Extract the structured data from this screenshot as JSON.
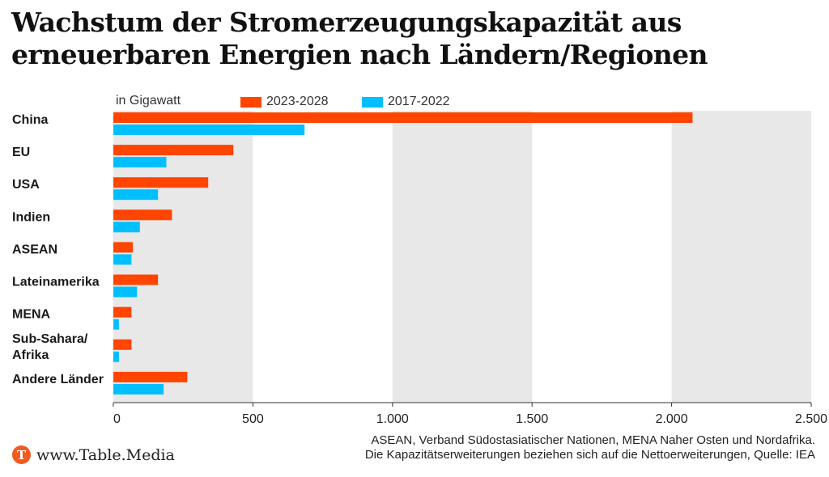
{
  "title": "Wachstum der Stromerzeugungskapazität aus erneuerbaren Energien nach Ländern/Regionen",
  "colors": {
    "series_a": "#ff4500",
    "series_b": "#00bfff",
    "band": "#e8e8e8",
    "axis": "#333333"
  },
  "chart_data": {
    "type": "bar",
    "orientation": "horizontal",
    "unit_label": "in Gigawatt",
    "categories": [
      "China",
      "EU",
      "USA",
      "Indien",
      "ASEAN",
      "Lateinamerika",
      "MENA",
      "Sub-Sahara/\nAfrika",
      "Andere Länder"
    ],
    "series": [
      {
        "name": "2023-2028",
        "values": [
          2075,
          430,
          340,
          210,
          70,
          160,
          65,
          65,
          265
        ]
      },
      {
        "name": "2017-2022",
        "values": [
          685,
          190,
          160,
          95,
          65,
          85,
          20,
          20,
          180
        ]
      }
    ],
    "xlim": [
      0,
      2500
    ],
    "ticks": [
      0,
      500,
      1000,
      1500,
      2000,
      2500
    ],
    "tick_labels": [
      "0",
      "500",
      "1.000",
      "1.500",
      "2.000",
      "2.500"
    ],
    "grid": "alternating bands",
    "legend_position": "top"
  },
  "footer": {
    "brand": "www.Table.Media",
    "brand_logo_letter": "T",
    "note_line1": "ASEAN, Verband Südostasiatischer Nationen, MENA Naher Osten und Nordafrika.",
    "note_line2": "Die Kapazitätserweiterungen beziehen sich auf die Nettoerweiterungen, Quelle: IEA"
  }
}
